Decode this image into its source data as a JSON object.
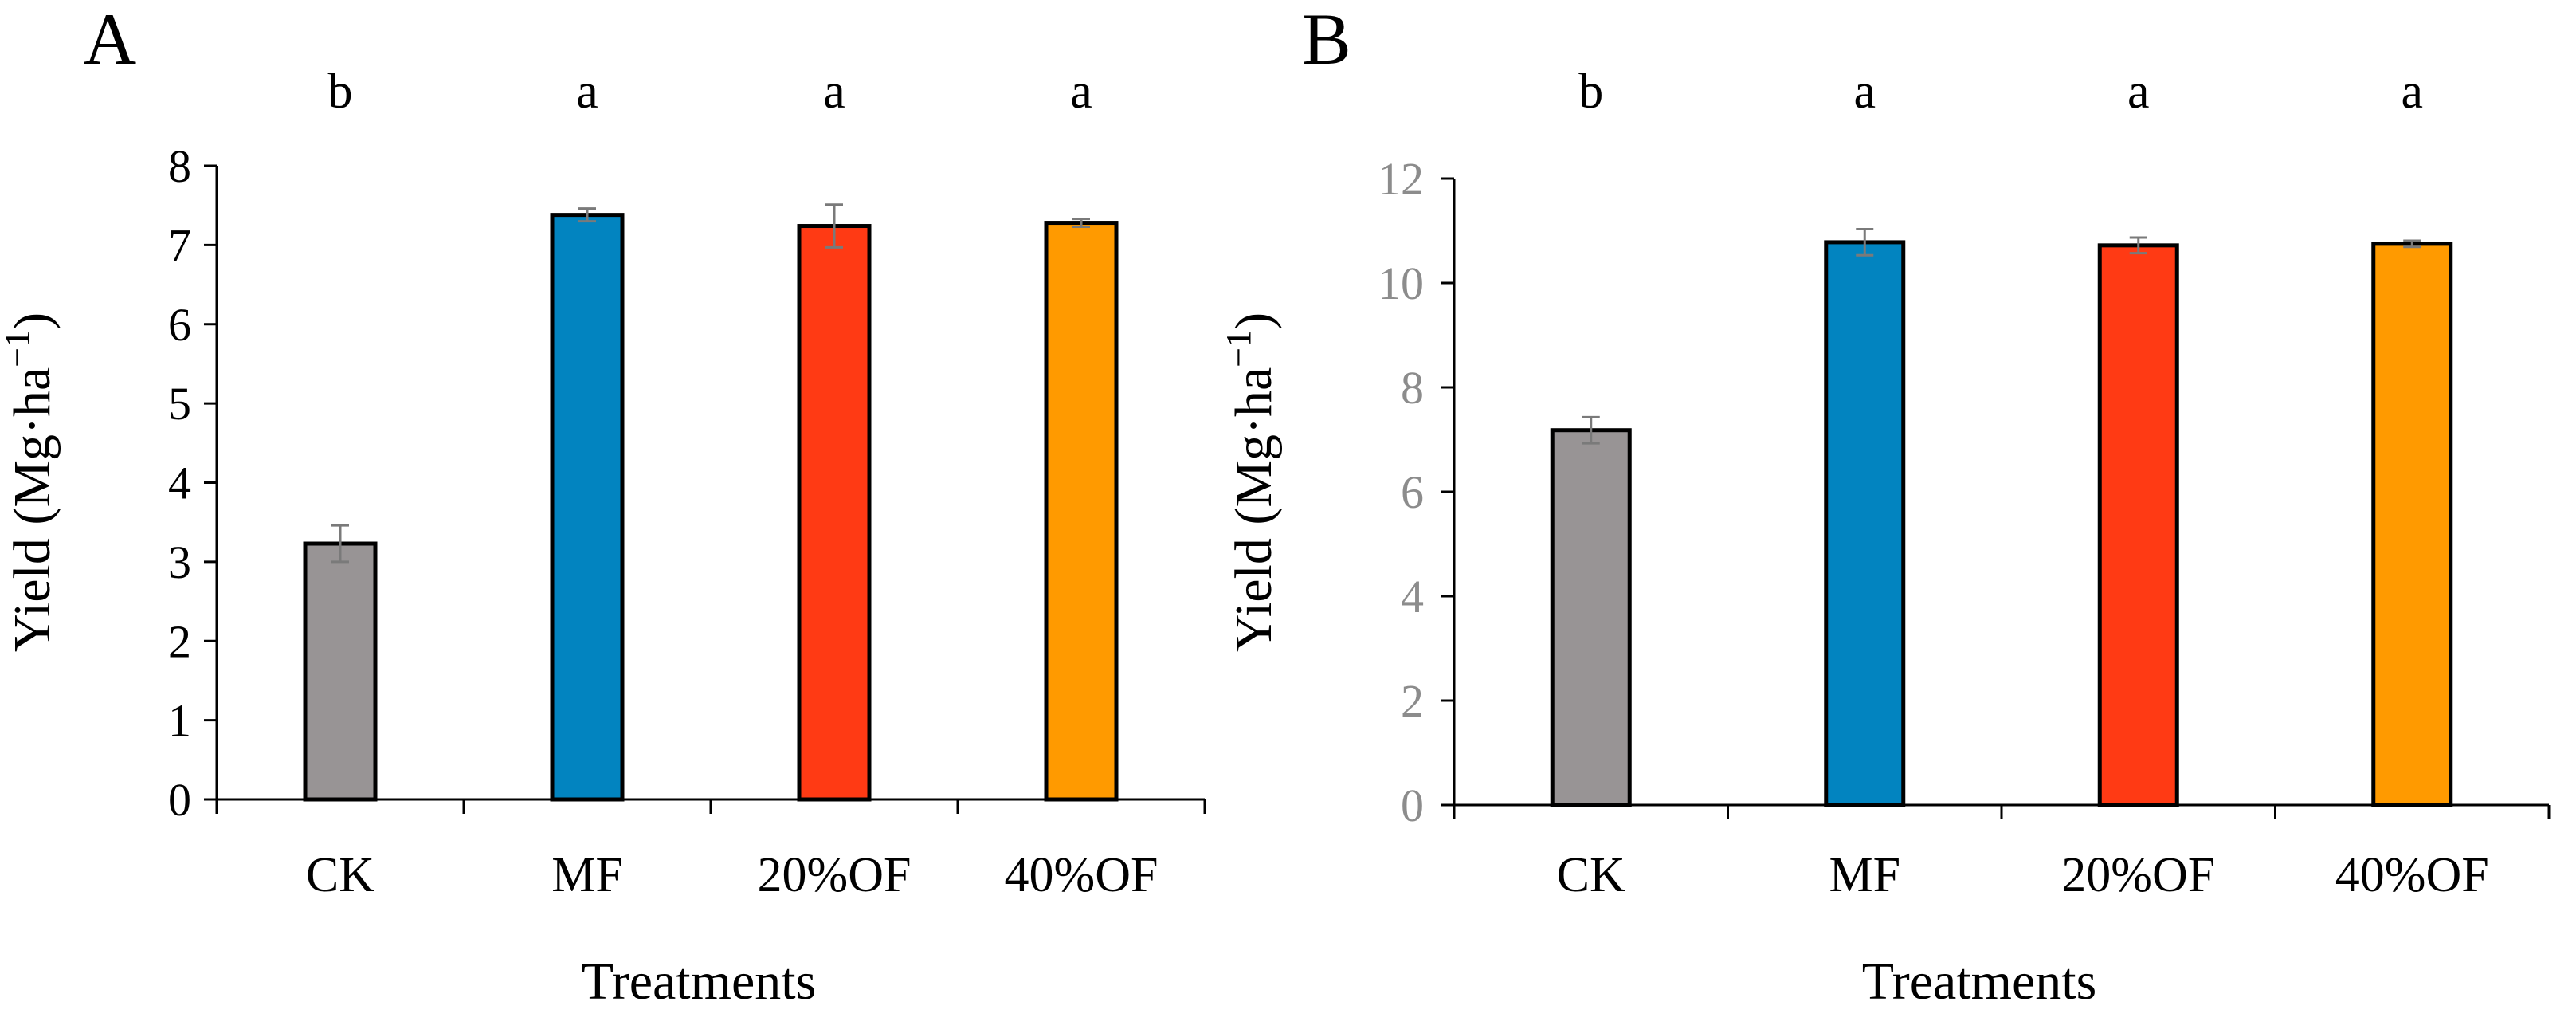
{
  "chart_data": [
    {
      "panel_label": "A",
      "type": "bar",
      "categories": [
        "CK",
        "MF",
        "20%OF",
        "40%OF"
      ],
      "values": [
        3.23,
        7.38,
        7.24,
        7.28
      ],
      "errors": [
        0.23,
        0.08,
        0.27,
        0.05
      ],
      "significance_letters": [
        "b",
        "a",
        "a",
        "a"
      ],
      "bar_colors": [
        "#989495",
        "#0284c0",
        "#ff3a14",
        "#ff9a00"
      ],
      "xlabel": "Treatments",
      "ylabel": "Yield (Mg·ha",
      "ylabel_sup": "−1",
      "ylabel_end": ")",
      "ylim": [
        0,
        8
      ],
      "yticks": [
        "0",
        "1",
        "2",
        "3",
        "4",
        "5",
        "6",
        "7",
        "8"
      ],
      "tick_color": "#000000",
      "grid": false
    },
    {
      "panel_label": "B",
      "type": "bar",
      "categories": [
        "CK",
        "MF",
        "20%OF",
        "40%OF"
      ],
      "values": [
        7.18,
        10.78,
        10.72,
        10.75
      ],
      "errors": [
        0.25,
        0.25,
        0.15,
        0.06
      ],
      "significance_letters": [
        "b",
        "a",
        "a",
        "a"
      ],
      "bar_colors": [
        "#989495",
        "#0284c0",
        "#ff3a14",
        "#ff9a00"
      ],
      "xlabel": "Treatments",
      "ylabel": "Yield (Mg·ha",
      "ylabel_sup": "−1",
      "ylabel_end": ")",
      "ylim": [
        0,
        12
      ],
      "yticks": [
        "0",
        "2",
        "4",
        "6",
        "8",
        "10",
        "12"
      ],
      "tick_color": "#8c8c8c",
      "grid": false
    }
  ]
}
